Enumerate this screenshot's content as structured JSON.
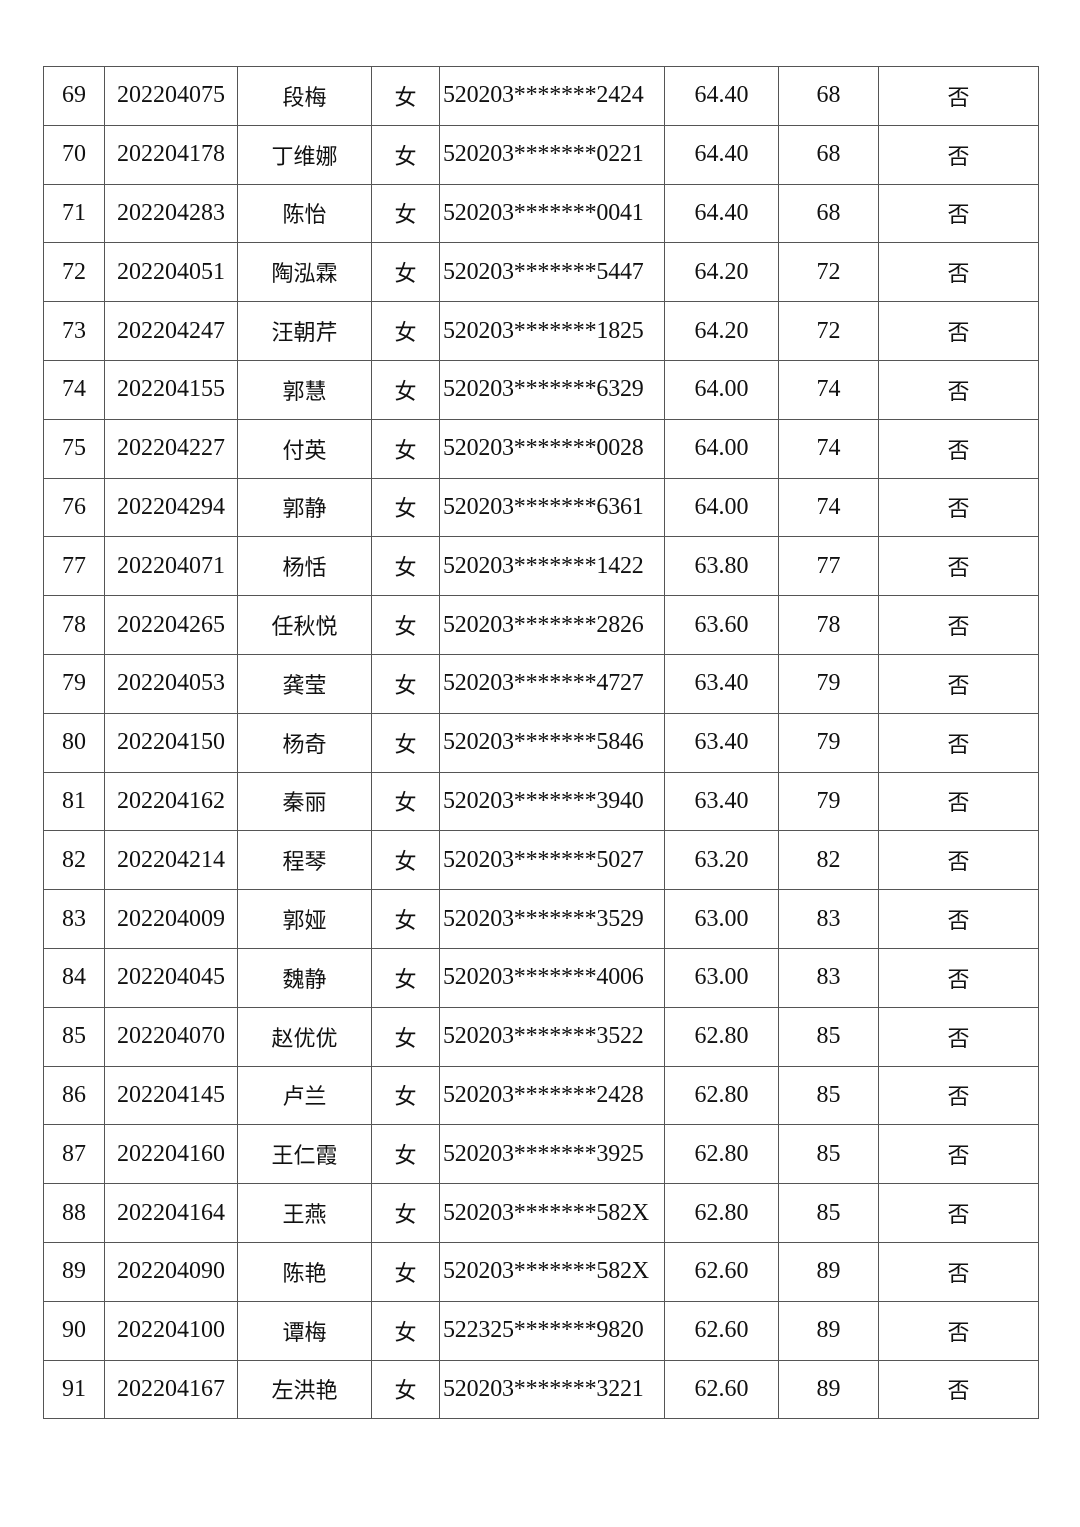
{
  "table": {
    "rows": [
      [
        "69",
        "202204075",
        "段梅",
        "女",
        "520203*******2424",
        "64.40",
        "68",
        "否"
      ],
      [
        "70",
        "202204178",
        "丁维娜",
        "女",
        "520203*******0221",
        "64.40",
        "68",
        "否"
      ],
      [
        "71",
        "202204283",
        "陈怡",
        "女",
        "520203*******0041",
        "64.40",
        "68",
        "否"
      ],
      [
        "72",
        "202204051",
        "陶泓霖",
        "女",
        "520203*******5447",
        "64.20",
        "72",
        "否"
      ],
      [
        "73",
        "202204247",
        "汪朝芹",
        "女",
        "520203*******1825",
        "64.20",
        "72",
        "否"
      ],
      [
        "74",
        "202204155",
        "郭慧",
        "女",
        "520203*******6329",
        "64.00",
        "74",
        "否"
      ],
      [
        "75",
        "202204227",
        "付英",
        "女",
        "520203*******0028",
        "64.00",
        "74",
        "否"
      ],
      [
        "76",
        "202204294",
        "郭静",
        "女",
        "520203*******6361",
        "64.00",
        "74",
        "否"
      ],
      [
        "77",
        "202204071",
        "杨恬",
        "女",
        "520203*******1422",
        "63.80",
        "77",
        "否"
      ],
      [
        "78",
        "202204265",
        "任秋悦",
        "女",
        "520203*******2826",
        "63.60",
        "78",
        "否"
      ],
      [
        "79",
        "202204053",
        "龚莹",
        "女",
        "520203*******4727",
        "63.40",
        "79",
        "否"
      ],
      [
        "80",
        "202204150",
        "杨奇",
        "女",
        "520203*******5846",
        "63.40",
        "79",
        "否"
      ],
      [
        "81",
        "202204162",
        "秦丽",
        "女",
        "520203*******3940",
        "63.40",
        "79",
        "否"
      ],
      [
        "82",
        "202204214",
        "程琴",
        "女",
        "520203*******5027",
        "63.20",
        "82",
        "否"
      ],
      [
        "83",
        "202204009",
        "郭娅",
        "女",
        "520203*******3529",
        "63.00",
        "83",
        "否"
      ],
      [
        "84",
        "202204045",
        "魏静",
        "女",
        "520203*******4006",
        "63.00",
        "83",
        "否"
      ],
      [
        "85",
        "202204070",
        "赵优优",
        "女",
        "520203*******3522",
        "62.80",
        "85",
        "否"
      ],
      [
        "86",
        "202204145",
        "卢兰",
        "女",
        "520203*******2428",
        "62.80",
        "85",
        "否"
      ],
      [
        "87",
        "202204160",
        "王仁霞",
        "女",
        "520203*******3925",
        "62.80",
        "85",
        "否"
      ],
      [
        "88",
        "202204164",
        "王燕",
        "女",
        "520203*******582X",
        "62.80",
        "85",
        "否"
      ],
      [
        "89",
        "202204090",
        "陈艳",
        "女",
        "520203*******582X",
        "62.60",
        "89",
        "否"
      ],
      [
        "90",
        "202204100",
        "谭梅",
        "女",
        "522325*******9820",
        "62.60",
        "89",
        "否"
      ],
      [
        "91",
        "202204167",
        "左洪艳",
        "女",
        "520203*******3221",
        "62.60",
        "89",
        "否"
      ]
    ]
  }
}
